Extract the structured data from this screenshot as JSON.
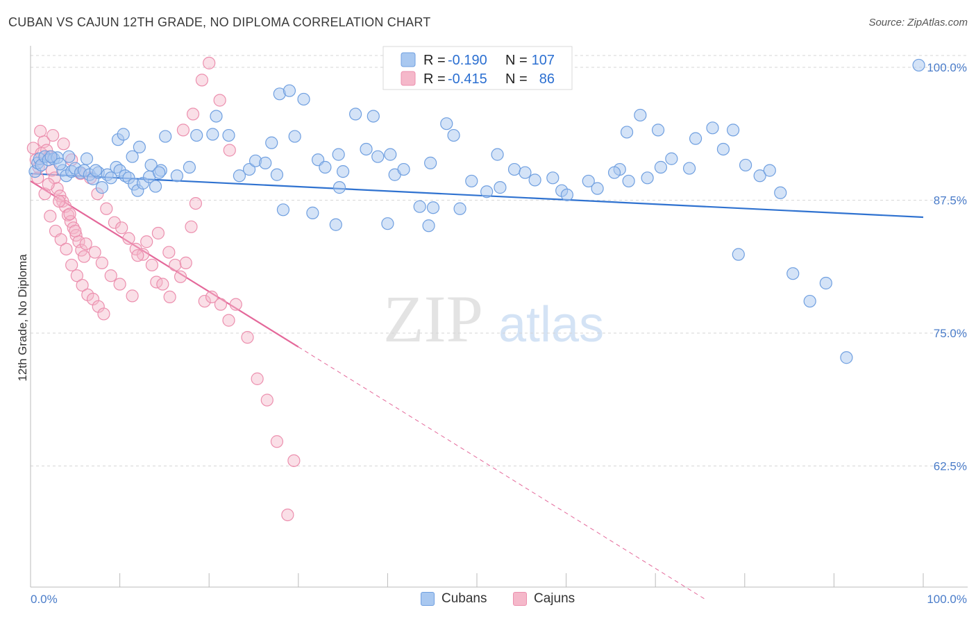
{
  "header": {
    "title": "CUBAN VS CAJUN 12TH GRADE, NO DIPLOMA CORRELATION CHART",
    "source": "Source: ZipAtlas.com"
  },
  "watermark": {
    "zip": "ZIP",
    "atlas": "atlas"
  },
  "legend_top": {
    "rows": [
      {
        "r_label": "R =",
        "r_value": "-0.190",
        "n_label": "N =",
        "n_value": "107"
      },
      {
        "r_label": "R =",
        "r_value": "-0.415",
        "n_label": "N =",
        "n_value": "86"
      }
    ]
  },
  "legend_bottom": {
    "series1": "Cubans",
    "series2": "Cajuns"
  },
  "colors": {
    "blue_fill": "#a9c8f0",
    "blue_stroke": "#6f9fe0",
    "blue_line": "#2f72d0",
    "pink_fill": "#f5b8ca",
    "pink_stroke": "#ec8fae",
    "pink_line": "#e4689a",
    "tick_text": "#4a7cc9",
    "grid": "#d6d6d6"
  },
  "chart_data": {
    "type": "scatter",
    "title": "CUBAN VS CAJUN 12TH GRADE, NO DIPLOMA CORRELATION CHART",
    "xlabel": "",
    "ylabel": "12th Grade, No Diploma",
    "xlim": [
      0,
      100
    ],
    "ylim": [
      52.5,
      101.5
    ],
    "x_tick_labels": [
      "0.0%",
      "100.0%"
    ],
    "y_ticks": [
      100.0,
      87.5,
      75.0,
      62.5
    ],
    "y_tick_labels": [
      "100.0%",
      "87.5%",
      "75.0%",
      "62.5%"
    ],
    "grid": true,
    "legend_position": "top-center",
    "series": [
      {
        "name": "Cubans",
        "r": -0.19,
        "n": 107,
        "trend": {
          "x": [
            0,
            100
          ],
          "y": [
            90.0,
            85.9
          ]
        },
        "points": [
          [
            0.5,
            90.2
          ],
          [
            0.8,
            91.0
          ],
          [
            1.0,
            91.4
          ],
          [
            1.2,
            90.8
          ],
          [
            1.6,
            91.6
          ],
          [
            2.0,
            91.3
          ],
          [
            2.6,
            91.4
          ],
          [
            3.0,
            91.5
          ],
          [
            3.6,
            90.3
          ],
          [
            4.0,
            89.8
          ],
          [
            4.6,
            90.2
          ],
          [
            5.0,
            90.5
          ],
          [
            5.6,
            90.1
          ],
          [
            6.0,
            90.3
          ],
          [
            6.6,
            89.9
          ],
          [
            7.0,
            89.5
          ],
          [
            7.6,
            90.1
          ],
          [
            8.0,
            88.7
          ],
          [
            8.6,
            89.9
          ],
          [
            9.0,
            89.6
          ],
          [
            9.6,
            90.6
          ],
          [
            10.0,
            90.3
          ],
          [
            10.6,
            89.8
          ],
          [
            11.0,
            89.6
          ],
          [
            11.6,
            89.0
          ],
          [
            12.0,
            88.4
          ],
          [
            12.6,
            89.1
          ],
          [
            13.3,
            89.7
          ],
          [
            14.0,
            88.8
          ],
          [
            14.6,
            90.3
          ],
          [
            2.3,
            91.6
          ],
          [
            3.3,
            90.9
          ],
          [
            4.3,
            91.6
          ],
          [
            6.3,
            91.4
          ],
          [
            7.3,
            90.3
          ],
          [
            9.8,
            93.2
          ],
          [
            10.4,
            93.7
          ],
          [
            11.4,
            91.6
          ],
          [
            12.2,
            92.5
          ],
          [
            13.5,
            90.8
          ],
          [
            14.4,
            90.1
          ],
          [
            15.1,
            93.5
          ],
          [
            16.4,
            89.8
          ],
          [
            17.8,
            90.6
          ],
          [
            18.6,
            93.6
          ],
          [
            20.4,
            93.7
          ],
          [
            22.2,
            93.6
          ],
          [
            20.8,
            95.4
          ],
          [
            23.4,
            89.8
          ],
          [
            24.5,
            90.4
          ],
          [
            25.2,
            91.2
          ],
          [
            26.3,
            91.0
          ],
          [
            27.0,
            92.9
          ],
          [
            27.6,
            89.9
          ],
          [
            28.3,
            86.6
          ],
          [
            29.6,
            93.5
          ],
          [
            30.6,
            97.0
          ],
          [
            27.9,
            97.5
          ],
          [
            29.0,
            97.8
          ],
          [
            31.6,
            86.3
          ],
          [
            32.2,
            91.3
          ],
          [
            33.0,
            90.6
          ],
          [
            34.2,
            85.2
          ],
          [
            34.5,
            91.8
          ],
          [
            34.6,
            88.7
          ],
          [
            35.0,
            90.2
          ],
          [
            36.4,
            95.6
          ],
          [
            37.6,
            92.3
          ],
          [
            38.4,
            95.4
          ],
          [
            38.9,
            91.6
          ],
          [
            40.0,
            85.3
          ],
          [
            40.3,
            91.8
          ],
          [
            40.8,
            89.9
          ],
          [
            41.8,
            90.4
          ],
          [
            43.6,
            86.9
          ],
          [
            44.8,
            91.0
          ],
          [
            44.6,
            85.1
          ],
          [
            45.1,
            86.8
          ],
          [
            46.6,
            94.7
          ],
          [
            47.4,
            93.6
          ],
          [
            48.1,
            86.7
          ],
          [
            49.4,
            89.3
          ],
          [
            51.1,
            88.3
          ],
          [
            52.6,
            88.7
          ],
          [
            52.3,
            91.8
          ],
          [
            54.2,
            90.4
          ],
          [
            55.4,
            90.1
          ],
          [
            56.5,
            89.4
          ],
          [
            58.5,
            89.6
          ],
          [
            59.5,
            88.4
          ],
          [
            60.1,
            88.0
          ],
          [
            62.5,
            89.3
          ],
          [
            63.5,
            88.6
          ],
          [
            66.0,
            90.4
          ],
          [
            66.8,
            93.9
          ],
          [
            68.3,
            95.5
          ],
          [
            65.4,
            90.1
          ],
          [
            67.0,
            89.3
          ],
          [
            69.1,
            89.6
          ],
          [
            70.3,
            94.1
          ],
          [
            70.6,
            90.6
          ],
          [
            71.8,
            91.4
          ],
          [
            73.8,
            90.5
          ],
          [
            74.5,
            93.3
          ],
          [
            76.4,
            94.3
          ],
          [
            78.7,
            94.1
          ],
          [
            77.6,
            92.3
          ],
          [
            80.1,
            90.8
          ],
          [
            79.3,
            82.4
          ],
          [
            81.7,
            89.8
          ],
          [
            82.8,
            90.3
          ],
          [
            84.0,
            88.2
          ],
          [
            85.4,
            80.6
          ],
          [
            87.3,
            78.0
          ],
          [
            89.1,
            79.7
          ],
          [
            91.4,
            72.7
          ],
          [
            99.5,
            100.2
          ]
        ]
      },
      {
        "name": "Cajuns",
        "r": -0.415,
        "n": 86,
        "trend": {
          "x": [
            0,
            30
          ],
          "y": [
            89.3,
            73.7
          ]
        },
        "trend_extension": {
          "x": [
            30,
            75.5
          ],
          "y": [
            73.7,
            50.0
          ]
        },
        "points": [
          [
            0.3,
            92.4
          ],
          [
            0.6,
            91.3
          ],
          [
            0.9,
            90.6
          ],
          [
            1.2,
            91.9
          ],
          [
            1.5,
            93.0
          ],
          [
            1.8,
            92.2
          ],
          [
            2.1,
            91.6
          ],
          [
            2.4,
            90.3
          ],
          [
            2.7,
            89.6
          ],
          [
            3.0,
            88.6
          ],
          [
            3.3,
            87.9
          ],
          [
            3.6,
            87.4
          ],
          [
            3.9,
            86.9
          ],
          [
            4.2,
            86.1
          ],
          [
            4.5,
            85.5
          ],
          [
            4.8,
            84.9
          ],
          [
            5.1,
            84.2
          ],
          [
            5.4,
            83.6
          ],
          [
            5.7,
            82.8
          ],
          [
            6.0,
            82.2
          ],
          [
            0.8,
            89.6
          ],
          [
            1.6,
            88.1
          ],
          [
            2.2,
            86.0
          ],
          [
            2.8,
            84.6
          ],
          [
            3.4,
            83.8
          ],
          [
            4.0,
            82.9
          ],
          [
            4.6,
            81.4
          ],
          [
            5.2,
            80.4
          ],
          [
            5.8,
            79.5
          ],
          [
            6.4,
            78.6
          ],
          [
            7.0,
            78.2
          ],
          [
            7.6,
            77.5
          ],
          [
            8.2,
            76.8
          ],
          [
            1.1,
            94.0
          ],
          [
            2.5,
            93.6
          ],
          [
            3.7,
            92.8
          ],
          [
            4.6,
            91.3
          ],
          [
            5.6,
            90.0
          ],
          [
            6.7,
            89.6
          ],
          [
            7.5,
            88.1
          ],
          [
            8.5,
            86.7
          ],
          [
            9.4,
            85.4
          ],
          [
            10.2,
            84.9
          ],
          [
            11.0,
            83.9
          ],
          [
            11.8,
            82.9
          ],
          [
            12.6,
            82.4
          ],
          [
            13.6,
            81.4
          ],
          [
            14.1,
            79.8
          ],
          [
            14.8,
            79.6
          ],
          [
            15.6,
            78.4
          ],
          [
            2.0,
            89.0
          ],
          [
            3.2,
            87.4
          ],
          [
            4.4,
            86.2
          ],
          [
            5.0,
            84.6
          ],
          [
            6.2,
            83.4
          ],
          [
            7.2,
            82.6
          ],
          [
            8.0,
            81.6
          ],
          [
            9.0,
            80.4
          ],
          [
            10.0,
            79.6
          ],
          [
            11.4,
            78.5
          ],
          [
            12.0,
            82.3
          ],
          [
            13.0,
            83.6
          ],
          [
            14.3,
            84.4
          ],
          [
            15.5,
            82.6
          ],
          [
            16.2,
            81.4
          ],
          [
            16.8,
            80.3
          ],
          [
            17.4,
            81.6
          ],
          [
            18.0,
            85.0
          ],
          [
            18.5,
            87.2
          ],
          [
            19.5,
            78.0
          ],
          [
            20.3,
            78.4
          ],
          [
            21.3,
            77.7
          ],
          [
            22.2,
            76.2
          ],
          [
            23.0,
            77.7
          ],
          [
            24.3,
            74.6
          ],
          [
            25.4,
            70.7
          ],
          [
            26.5,
            68.7
          ],
          [
            27.6,
            64.8
          ],
          [
            28.8,
            57.9
          ],
          [
            29.5,
            63.0
          ],
          [
            17.1,
            94.1
          ],
          [
            18.2,
            95.6
          ],
          [
            19.2,
            98.8
          ],
          [
            20.0,
            100.4
          ],
          [
            21.2,
            96.9
          ],
          [
            22.3,
            92.2
          ]
        ]
      }
    ]
  }
}
